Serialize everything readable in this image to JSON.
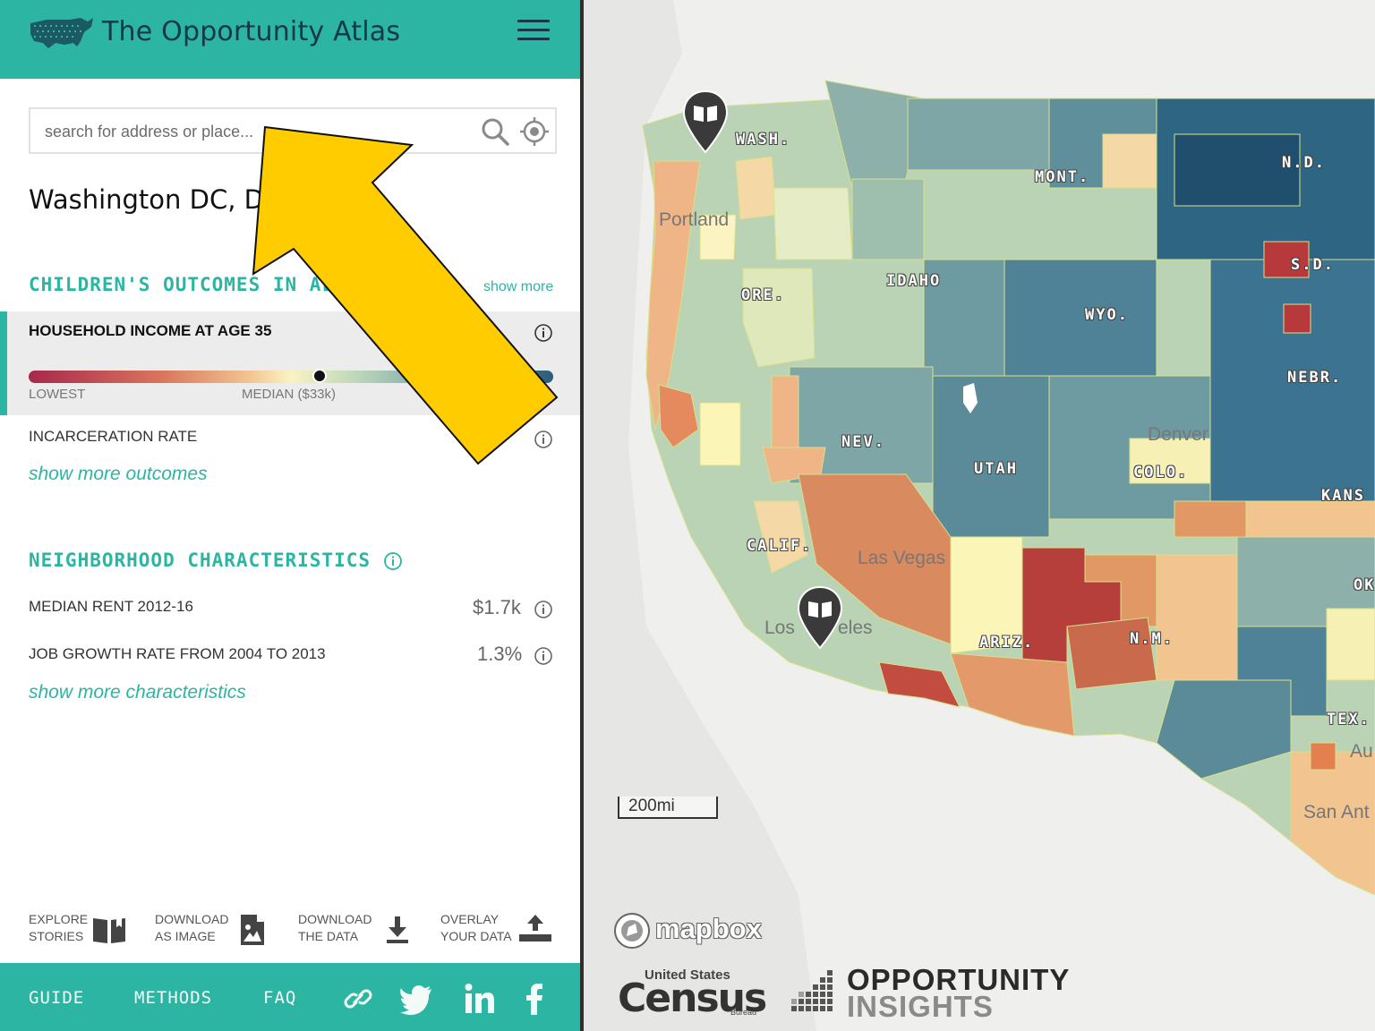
{
  "app": {
    "title": "The Opportunity Atlas"
  },
  "search": {
    "placeholder": "search for address or place..."
  },
  "place": {
    "name": "Washington DC, DC"
  },
  "outcomes": {
    "heading": "CHILDREN'S OUTCOMES IN AL",
    "show_more": "show more",
    "income": {
      "label": "HOUSEHOLD INCOME AT AGE 35",
      "value_visible": "k",
      "scale_lowest": "LOWEST",
      "scale_median": "MEDIAN ($33k)",
      "marker_fraction": 0.555
    },
    "incarceration": {
      "label": "INCARCERATION RATE",
      "value_visible": "%"
    },
    "show_more_outcomes": "show more outcomes"
  },
  "neighborhood": {
    "heading": "NEIGHBORHOOD CHARACTERISTICS",
    "rent": {
      "label": "MEDIAN RENT 2012-16",
      "value": "$1.7k"
    },
    "job_growth": {
      "label": "JOB GROWTH RATE FROM 2004 TO 2013",
      "value": "1.3%"
    },
    "show_more_characteristics": "show more characteristics"
  },
  "tools": {
    "stories": {
      "line1": "EXPLORE",
      "line2": "STORIES",
      "icon": "book-icon"
    },
    "image": {
      "line1": "DOWNLOAD",
      "line2": "AS IMAGE",
      "icon": "image-file-icon"
    },
    "data": {
      "line1": "DOWNLOAD",
      "line2": "THE DATA",
      "icon": "download-icon"
    },
    "overlay": {
      "line1": "OVERLAY",
      "line2": "YOUR DATA",
      "icon": "upload-icon"
    }
  },
  "footer": {
    "guide": "GUIDE",
    "methods": "METHODS",
    "faq": "FAQ",
    "icons": [
      "link-icon",
      "twitter-icon",
      "linkedin-icon",
      "facebook-icon"
    ]
  },
  "map": {
    "cities": [
      "Portland",
      "Denver",
      "Las Vegas",
      "Los Angeles",
      "San Ant"
    ],
    "city_visible_text": {
      "portland": "Portland",
      "denver": "Denver",
      "las_vegas": "Las Vegas",
      "los_angeles_left": "Los",
      "los_angeles_right": "eles",
      "san_antonio": "San Ant",
      "austin": "Au"
    },
    "states": {
      "wash": "WASH.",
      "mont": "MONT.",
      "nd": "N.D.",
      "sd": "S.D.",
      "ore": "ORE.",
      "idaho": "IDAHO",
      "wyo": "WYO.",
      "nebr": "NEBR.",
      "nev": "NEV.",
      "utah": "UTAH",
      "colo": "COLO.",
      "kans": "KANS",
      "calif": "CALIF.",
      "ariz": "ARIZ.",
      "nm": "N.M.",
      "tex": "TEX.",
      "ok": "OK"
    },
    "scale": "200mi",
    "attribution": {
      "mapbox": "mapbox",
      "census_small": "United States",
      "census_big": "Census",
      "census_bureau": "Bureau",
      "oi_line1": "OPPORTUNITY",
      "oi_line2": "INSIGHTS"
    }
  },
  "colors": {
    "teal": "#2cb5a3",
    "navy": "#15384a",
    "annotation_arrow": "#ffcc00"
  }
}
